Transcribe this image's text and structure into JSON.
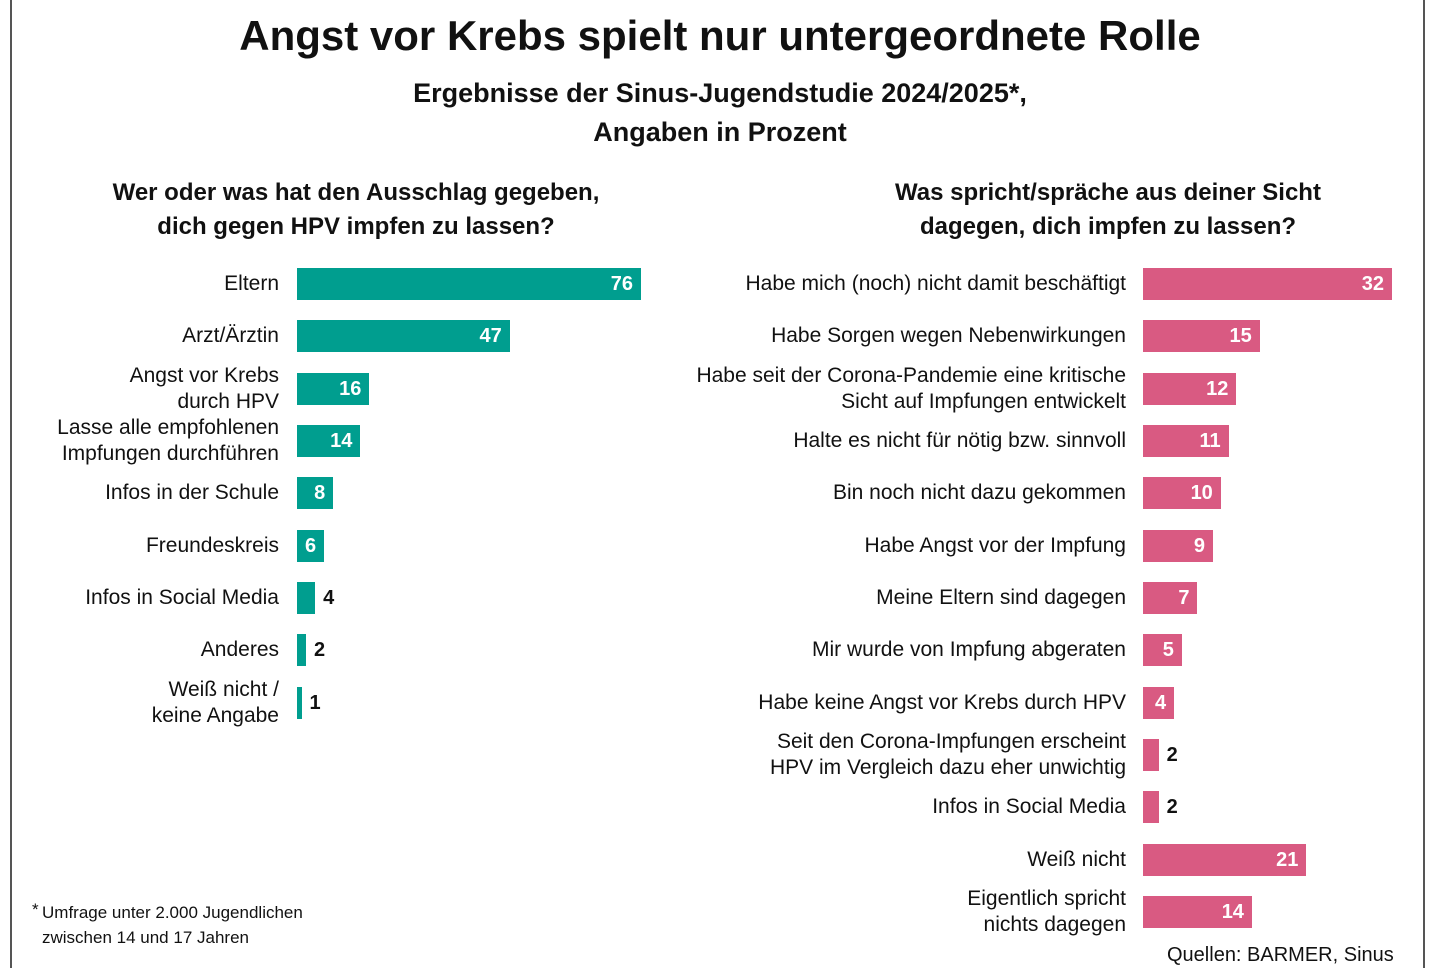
{
  "title": "Angst vor Krebs spielt nur untergeordnete Rolle",
  "subtitle": "Ergebnisse der Sinus-Jugendstudie 2024/2025*,\nAngaben in Prozent",
  "footnote": "Umfrage unter 2.000 Jugendlichen\nzwischen 14 und 17 Jahren",
  "footnote_marker": "*",
  "source": "Quellen: BARMER, Sinus",
  "chart_data": [
    {
      "type": "bar",
      "orientation": "horizontal",
      "title": "Wer oder was hat den Ausschlag gegeben,\ndich gegen HPV impfen zu lassen?",
      "categories": [
        "Eltern",
        "Arzt/Ärztin",
        "Angst vor Krebs\ndurch HPV",
        "Lasse alle empfohlenen\nImpfungen durchführen",
        "Infos in der Schule",
        "Freundeskreis",
        "Infos in Social Media",
        "Anderes",
        "Weiß nicht /\nkeine Angabe"
      ],
      "values": [
        76,
        47,
        16,
        14,
        8,
        6,
        4,
        2,
        1
      ],
      "color": "#009e8f"
    },
    {
      "type": "bar",
      "orientation": "horizontal",
      "title": "Was spricht/spräche aus deiner Sicht\ndagegen, dich impfen zu lassen?",
      "categories": [
        "Habe mich (noch) nicht damit beschäftigt",
        "Habe Sorgen wegen Nebenwirkungen",
        "Habe seit der Corona-Pandemie eine kritische\nSicht auf Impfungen entwickelt",
        "Halte es nicht für nötig bzw. sinnvoll",
        "Bin noch nicht dazu gekommen",
        "Habe Angst vor der Impfung",
        "Meine Eltern sind dagegen",
        "Mir wurde von Impfung abgeraten",
        "Habe keine Angst vor Krebs durch HPV",
        "Seit den Corona-Impfungen erscheint\nHPV im Vergleich dazu eher unwichtig",
        "Infos in Social Media",
        "Weiß nicht",
        "Eigentlich spricht\nnichts dagegen"
      ],
      "values": [
        32,
        15,
        12,
        11,
        10,
        9,
        7,
        5,
        4,
        2,
        2,
        21,
        14
      ],
      "color": "#d95a82"
    }
  ]
}
